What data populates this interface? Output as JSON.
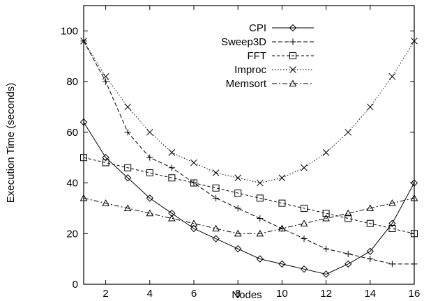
{
  "chart_data": {
    "type": "line",
    "xlabel": "Nodes",
    "ylabel": "Execution Time (seconds)",
    "xlim": [
      1,
      16
    ],
    "ylim": [
      0,
      110
    ],
    "xticks": [
      2,
      4,
      6,
      8,
      10,
      12,
      14,
      16
    ],
    "yticks": [
      0,
      20,
      40,
      60,
      80,
      100
    ],
    "grid": false,
    "legend_position": "top-center",
    "x": [
      1,
      2,
      3,
      4,
      5,
      6,
      7,
      8,
      9,
      10,
      11,
      12,
      13,
      14,
      15,
      16
    ],
    "series": [
      {
        "name": "CPI",
        "marker": "diamond",
        "dash": "",
        "values": [
          64,
          50,
          42,
          34,
          28,
          22,
          18,
          14,
          10,
          8,
          6,
          4,
          8,
          13,
          24,
          40
        ]
      },
      {
        "name": "Sweep3D",
        "marker": "plus",
        "dash": "6,3",
        "values": [
          96,
          80,
          60,
          50,
          46,
          40,
          34,
          30,
          26,
          22,
          18,
          14,
          12,
          10,
          8,
          8
        ]
      },
      {
        "name": "FFT",
        "marker": "square",
        "dash": "4,3",
        "values": [
          50,
          48,
          46,
          44,
          42,
          40,
          38,
          36,
          34,
          32,
          30,
          28,
          26,
          24,
          22,
          20
        ]
      },
      {
        "name": "Improc",
        "marker": "cross",
        "dash": "1.5,2.5",
        "values": [
          96,
          82,
          70,
          60,
          52,
          48,
          44,
          42,
          40,
          42,
          46,
          52,
          60,
          70,
          82,
          96
        ]
      },
      {
        "name": "Memsort",
        "marker": "triangle",
        "dash": "7,3,2,3",
        "values": [
          34,
          32,
          30,
          28,
          26,
          24,
          22,
          20,
          20,
          22,
          24,
          26,
          28,
          30,
          32,
          34
        ]
      }
    ]
  }
}
